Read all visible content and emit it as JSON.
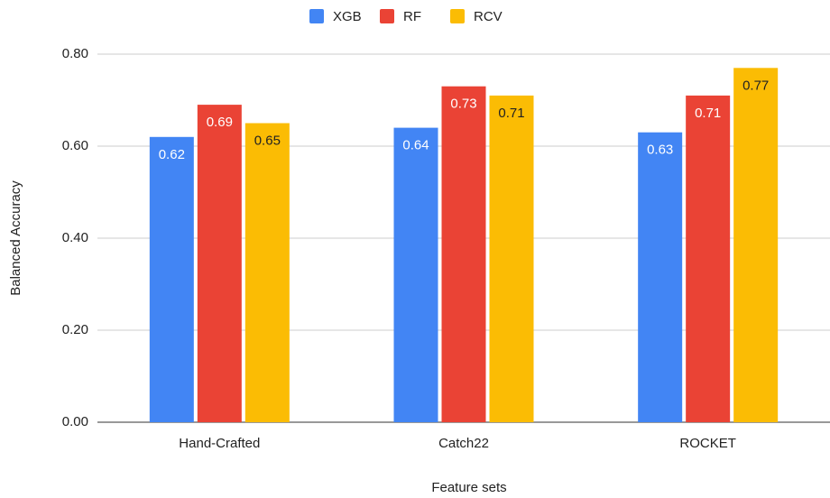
{
  "chart_data": {
    "type": "bar",
    "x_label": "Feature sets",
    "y_label": "Balanced Accuracy",
    "categories": [
      "Hand-Crafted",
      "Catch22",
      "ROCKET"
    ],
    "series": [
      {
        "name": "XGB",
        "color": "#4285f4",
        "values": [
          0.62,
          0.64,
          0.63
        ]
      },
      {
        "name": "RF",
        "color": "#ea4335",
        "values": [
          0.69,
          0.73,
          0.71
        ]
      },
      {
        "name": "RCV",
        "color": "#fbbc04",
        "values": [
          0.65,
          0.71,
          0.77
        ]
      }
    ],
    "ylim": [
      0,
      0.8
    ],
    "yticks": [
      {
        "value": 0,
        "label": "0.00"
      },
      {
        "value": 0.2,
        "label": "0.20"
      },
      {
        "value": 0.4,
        "label": "0.40"
      },
      {
        "value": 0.6,
        "label": "0.60"
      },
      {
        "value": 0.8,
        "label": "0.80"
      }
    ],
    "grid": true,
    "legend": "top"
  }
}
